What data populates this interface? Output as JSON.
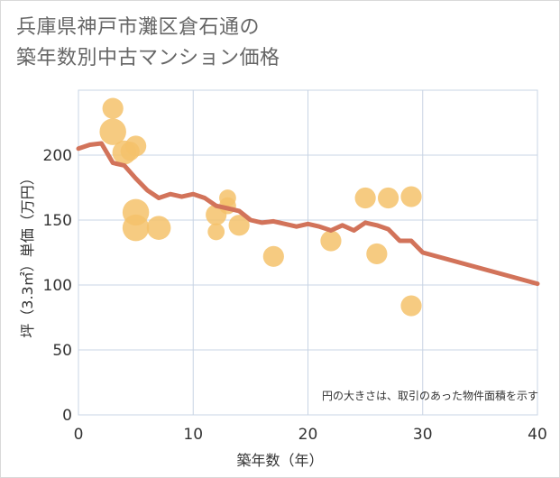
{
  "chart_data": {
    "type": "scatter",
    "title": [
      "兵庫県神戸市灘区倉石通の",
      "築年数別中古マンション価格"
    ],
    "xlabel": "築年数（年）",
    "ylabel": "坪（3.3㎡）単価（万円）",
    "note": "円の大きさは、取引のあった物件面積を示す",
    "xlim": [
      0,
      40
    ],
    "ylim": [
      0,
      250
    ],
    "xticks": [
      "0",
      "10",
      "20",
      "30",
      "40"
    ],
    "yticks": [
      "0",
      "50",
      "100",
      "150",
      "200"
    ],
    "grid": true,
    "colors": {
      "bubble": "#f5c26b",
      "line": "#d2735a",
      "grid": "#c8d4e4",
      "axis_text": "#333333"
    },
    "bubbles": [
      {
        "x": 3,
        "y": 236,
        "size": 4
      },
      {
        "x": 3,
        "y": 218,
        "size": 8
      },
      {
        "x": 4,
        "y": 202,
        "size": 6
      },
      {
        "x": 4.5,
        "y": 203,
        "size": 3
      },
      {
        "x": 5,
        "y": 207,
        "size": 4
      },
      {
        "x": 5,
        "y": 156,
        "size": 8
      },
      {
        "x": 5,
        "y": 144,
        "size": 8
      },
      {
        "x": 7,
        "y": 144,
        "size": 6
      },
      {
        "x": 12,
        "y": 154,
        "size": 4
      },
      {
        "x": 12,
        "y": 141,
        "size": 2
      },
      {
        "x": 13,
        "y": 167,
        "size": 2
      },
      {
        "x": 13,
        "y": 161,
        "size": 2
      },
      {
        "x": 14,
        "y": 146,
        "size": 4
      },
      {
        "x": 17,
        "y": 122,
        "size": 4
      },
      {
        "x": 22,
        "y": 134,
        "size": 4
      },
      {
        "x": 25,
        "y": 167,
        "size": 4
      },
      {
        "x": 26,
        "y": 124,
        "size": 4
      },
      {
        "x": 27,
        "y": 167,
        "size": 4
      },
      {
        "x": 29,
        "y": 168,
        "size": 4
      },
      {
        "x": 29,
        "y": 84,
        "size": 4
      }
    ],
    "line": {
      "x": [
        0,
        1,
        2,
        3,
        4,
        5,
        6,
        7,
        8,
        9,
        10,
        11,
        12,
        13,
        14,
        15,
        16,
        17,
        18,
        19,
        20,
        21,
        22,
        23,
        24,
        25,
        26,
        27,
        28,
        29,
        30,
        40
      ],
      "y": [
        205,
        208,
        209,
        194,
        192,
        182,
        173,
        167,
        170,
        168,
        170,
        167,
        161,
        159,
        157,
        150,
        148,
        149,
        147,
        145,
        147,
        145,
        142,
        146,
        142,
        148,
        146,
        143,
        134,
        134,
        125,
        101
      ]
    }
  }
}
